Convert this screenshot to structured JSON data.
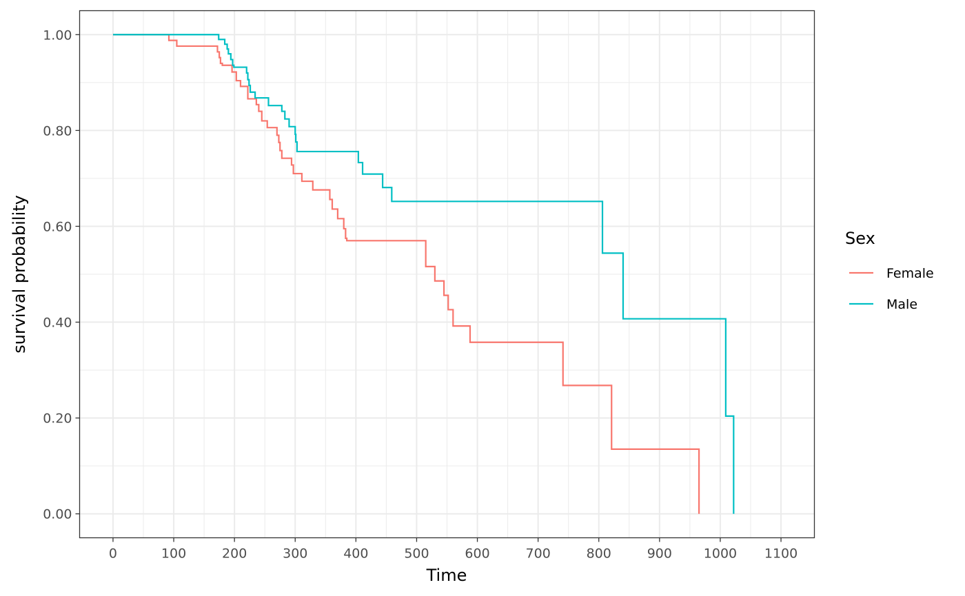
{
  "chart_data": {
    "type": "line",
    "step": true,
    "xlabel": "Time",
    "ylabel": "survival probability",
    "xlim": [
      -55,
      1155
    ],
    "ylim": [
      -0.05,
      1.05
    ],
    "x_ticks": [
      0,
      100,
      200,
      300,
      400,
      500,
      600,
      700,
      800,
      900,
      1000,
      1100
    ],
    "x_tick_labels": [
      "0",
      "100",
      "200",
      "300",
      "400",
      "500",
      "600",
      "700",
      "800",
      "900",
      "1000",
      "1100"
    ],
    "y_ticks": [
      0,
      0.2,
      0.4,
      0.6,
      0.8,
      1.0
    ],
    "y_tick_labels": [
      "0.00",
      "0.20",
      "0.40",
      "0.60",
      "0.80",
      "1.00"
    ],
    "grid": true,
    "legend": {
      "title": "Sex",
      "position": "right"
    },
    "series": [
      {
        "name": "Female",
        "color": "#F8766D",
        "x": [
          0,
          92,
          105,
          172,
          175,
          177,
          180,
          196,
          203,
          210,
          222,
          236,
          240,
          245,
          254,
          270,
          273,
          275,
          278,
          280,
          294,
          297,
          311,
          329,
          357,
          361,
          370,
          380,
          383,
          385,
          510,
          515,
          530,
          545,
          552,
          560,
          588,
          741,
          821,
          965,
          965
        ],
        "y": [
          1.0,
          0.988,
          0.976,
          0.964,
          0.952,
          0.94,
          0.936,
          0.922,
          0.904,
          0.892,
          0.866,
          0.854,
          0.84,
          0.82,
          0.806,
          0.79,
          0.775,
          0.758,
          0.742,
          0.742,
          0.728,
          0.71,
          0.694,
          0.676,
          0.656,
          0.636,
          0.616,
          0.595,
          0.575,
          0.57,
          0.57,
          0.516,
          0.486,
          0.456,
          0.426,
          0.392,
          0.358,
          0.268,
          0.135,
          0.135,
          0.0
        ]
      },
      {
        "name": "Male",
        "color": "#00BFC4",
        "x": [
          0,
          174,
          184,
          188,
          190,
          194,
          197,
          199,
          220,
          222,
          224,
          226,
          234,
          256,
          278,
          283,
          290,
          300,
          301,
          303,
          404,
          411,
          444,
          459,
          806,
          840,
          1009,
          1022,
          1022
        ],
        "y": [
          1.0,
          0.99,
          0.98,
          0.97,
          0.96,
          0.948,
          0.936,
          0.932,
          0.92,
          0.906,
          0.894,
          0.88,
          0.868,
          0.852,
          0.84,
          0.824,
          0.808,
          0.792,
          0.776,
          0.756,
          0.733,
          0.709,
          0.681,
          0.652,
          0.544,
          0.407,
          0.204,
          0.204,
          0.0
        ]
      }
    ]
  }
}
